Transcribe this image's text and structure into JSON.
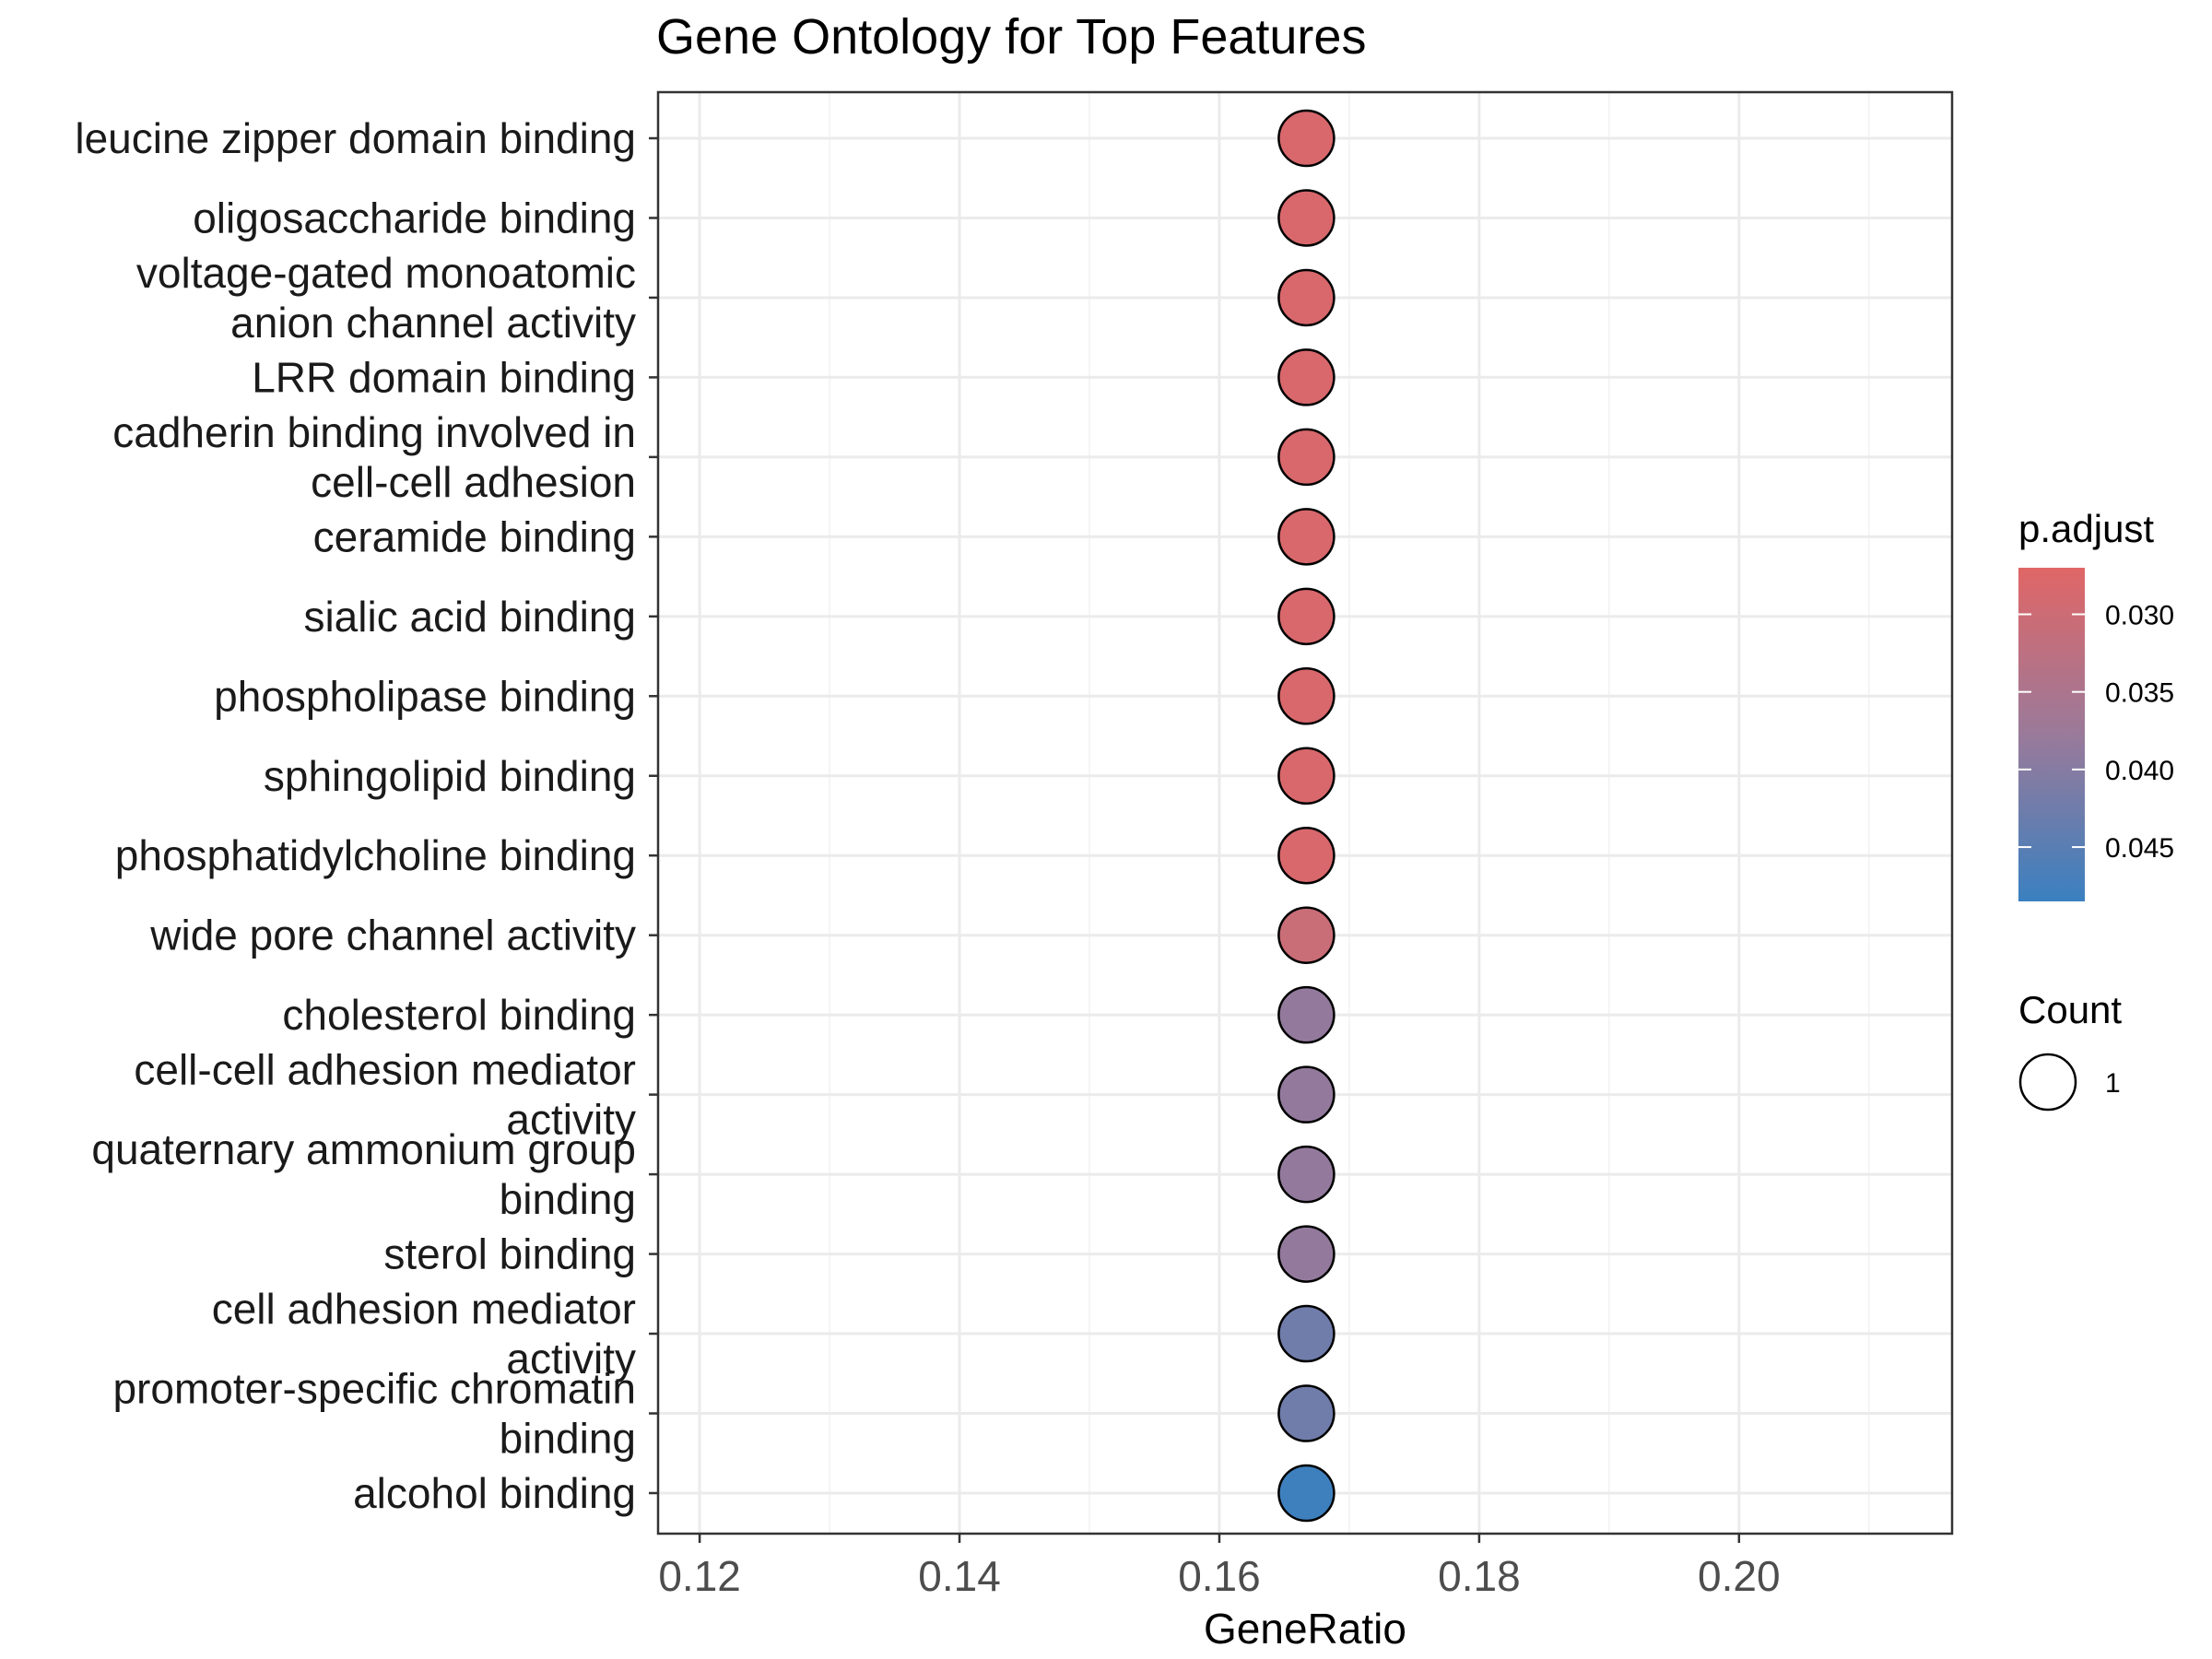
{
  "chart_data": {
    "type": "scatter",
    "title": "Gene Ontology for Top Features",
    "xlabel": "GeneRatio",
    "ylabel": "",
    "xlim": [
      0.1168,
      0.2164
    ],
    "xticks": [
      "0.12",
      "0.14",
      "0.16",
      "0.18",
      "0.20"
    ],
    "grid": true,
    "categories": [
      "leucine zipper domain binding",
      "oligosaccharide binding",
      "voltage-gated monoatomic\nanion channel activity",
      "LRR domain binding",
      "cadherin binding involved in\ncell-cell adhesion",
      "ceramide binding",
      "sialic acid binding",
      "phospholipase binding",
      "sphingolipid binding",
      "phosphatidylcholine binding",
      "wide pore channel activity",
      "cholesterol binding",
      "cell-cell adhesion mediator\nactivity",
      "quaternary ammonium group\nbinding",
      "sterol binding",
      "cell adhesion mediator\nactivity",
      "promoter-specific chromatin\nbinding",
      "alcohol binding"
    ],
    "points": [
      {
        "x": 0.1667,
        "p_adjust": 0.0283,
        "count": 1
      },
      {
        "x": 0.1667,
        "p_adjust": 0.0283,
        "count": 1
      },
      {
        "x": 0.1667,
        "p_adjust": 0.0283,
        "count": 1
      },
      {
        "x": 0.1667,
        "p_adjust": 0.0283,
        "count": 1
      },
      {
        "x": 0.1667,
        "p_adjust": 0.0283,
        "count": 1
      },
      {
        "x": 0.1667,
        "p_adjust": 0.0283,
        "count": 1
      },
      {
        "x": 0.1667,
        "p_adjust": 0.0283,
        "count": 1
      },
      {
        "x": 0.1667,
        "p_adjust": 0.0283,
        "count": 1
      },
      {
        "x": 0.1667,
        "p_adjust": 0.0283,
        "count": 1
      },
      {
        "x": 0.1667,
        "p_adjust": 0.0283,
        "count": 1
      },
      {
        "x": 0.1667,
        "p_adjust": 0.0305,
        "count": 1
      },
      {
        "x": 0.1667,
        "p_adjust": 0.0385,
        "count": 1
      },
      {
        "x": 0.1667,
        "p_adjust": 0.0385,
        "count": 1
      },
      {
        "x": 0.1667,
        "p_adjust": 0.0385,
        "count": 1
      },
      {
        "x": 0.1667,
        "p_adjust": 0.0385,
        "count": 1
      },
      {
        "x": 0.1667,
        "p_adjust": 0.0425,
        "count": 1
      },
      {
        "x": 0.1667,
        "p_adjust": 0.0425,
        "count": 1
      },
      {
        "x": 0.1667,
        "p_adjust": 0.048,
        "count": 1
      }
    ],
    "color_legend": {
      "title": "p.adjust",
      "range": [
        0.027,
        0.0485
      ],
      "ticks": [
        {
          "value": 0.03,
          "label": "0.030"
        },
        {
          "value": 0.035,
          "label": "0.035"
        },
        {
          "value": 0.04,
          "label": "0.040"
        },
        {
          "value": 0.045,
          "label": "0.045"
        }
      ],
      "low_color": "#e06666",
      "mid_color": "#9a7a9a",
      "high_color": "#3a80c0"
    },
    "size_legend": {
      "title": "Count",
      "entries": [
        {
          "value": 1,
          "label": "1"
        }
      ]
    },
    "legend_position": "right"
  }
}
